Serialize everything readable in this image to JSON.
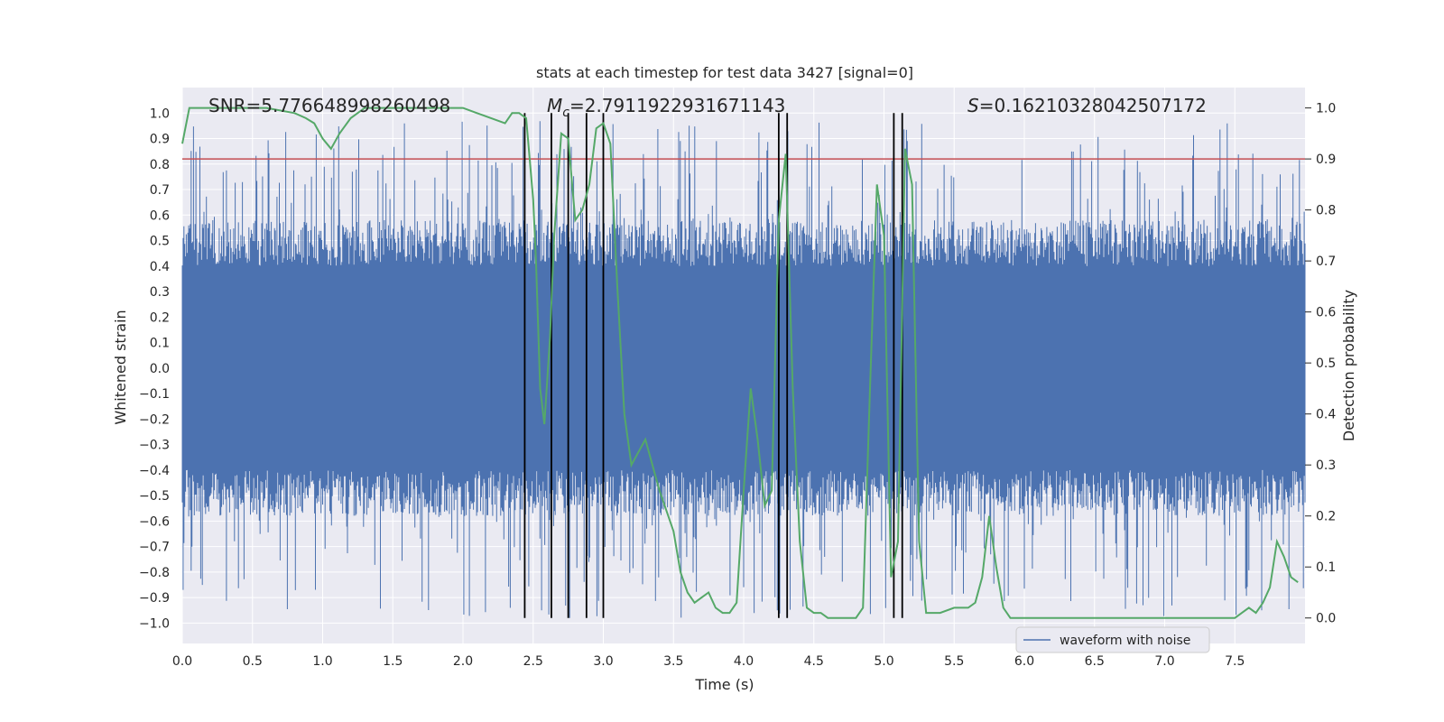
{
  "chart_data": {
    "type": "line",
    "title": "stats at each timestep for test data 3427 [signal=0]",
    "xlabel": "Time (s)",
    "ylabel": "Whitened strain",
    "y2label": "Detection probability",
    "xlim": [
      0,
      8
    ],
    "ylim": [
      -1.08,
      1.1
    ],
    "y2lim": [
      -0.05,
      1.04
    ],
    "x_ticks": [
      0.0,
      0.5,
      1.0,
      1.5,
      2.0,
      2.5,
      3.0,
      3.5,
      4.0,
      4.5,
      5.0,
      5.5,
      6.0,
      6.5,
      7.0,
      7.5
    ],
    "x_tick_labels": [
      "0.0",
      "0.5",
      "1.0",
      "1.5",
      "2.0",
      "2.5",
      "3.0",
      "3.5",
      "4.0",
      "4.5",
      "5.0",
      "5.5",
      "6.0",
      "6.5",
      "7.0",
      "7.5"
    ],
    "y_ticks": [
      -1.0,
      -0.9,
      -0.8,
      -0.7,
      -0.6,
      -0.5,
      -0.4,
      -0.3,
      -0.2,
      -0.1,
      0.0,
      0.1,
      0.2,
      0.3,
      0.4,
      0.5,
      0.6,
      0.7,
      0.8,
      0.9,
      1.0
    ],
    "y_tick_labels": [
      "−1.0",
      "−0.9",
      "−0.8",
      "−0.7",
      "−0.6",
      "−0.5",
      "−0.4",
      "−0.3",
      "−0.2",
      "−0.1",
      "0.0",
      "0.1",
      "0.2",
      "0.3",
      "0.4",
      "0.5",
      "0.6",
      "0.7",
      "0.8",
      "0.9",
      "1.0"
    ],
    "y2_ticks": [
      0.0,
      0.1,
      0.2,
      0.3,
      0.4,
      0.5,
      0.6,
      0.7,
      0.8,
      0.9,
      1.0
    ],
    "y2_tick_labels": [
      "0.0",
      "0.1",
      "0.2",
      "0.3",
      "0.4",
      "0.5",
      "0.6",
      "0.7",
      "0.8",
      "0.9",
      "1.0"
    ],
    "grid": true,
    "annotations": {
      "snr": "SNR=5.776648998260498",
      "mc_symbol": "M",
      "mc_sub": "c",
      "mc_value": "=2.7911922931671143",
      "s_symbol": "S",
      "s_value": "=0.16210328042507172"
    },
    "threshold": {
      "y2": 0.9,
      "color": "#c44e52"
    },
    "vertical_lines": [
      2.44,
      2.63,
      2.75,
      2.88,
      3.0,
      4.25,
      4.31,
      5.07,
      5.13
    ],
    "vertical_line_range": [
      0.0,
      1.0
    ],
    "series": [
      {
        "name": "waveform with noise",
        "color": "#4c72b0",
        "noise_profile": {
          "core_amplitude": 0.4,
          "max_spike": 0.97,
          "min_spike": -0.98
        }
      },
      {
        "color": "#55a868",
        "axis": "right",
        "x": [
          0.0,
          0.05,
          0.1,
          0.2,
          0.4,
          0.6,
          0.8,
          0.88,
          0.94,
          1.0,
          1.06,
          1.12,
          1.2,
          1.3,
          1.4,
          1.6,
          1.8,
          2.0,
          2.1,
          2.2,
          2.3,
          2.35,
          2.4,
          2.45,
          2.5,
          2.52,
          2.55,
          2.58,
          2.62,
          2.65,
          2.7,
          2.75,
          2.8,
          2.85,
          2.9,
          2.95,
          3.0,
          3.05,
          3.1,
          3.15,
          3.2,
          3.3,
          3.4,
          3.5,
          3.55,
          3.6,
          3.65,
          3.7,
          3.75,
          3.8,
          3.85,
          3.9,
          3.95,
          4.0,
          4.05,
          4.1,
          4.15,
          4.2,
          4.25,
          4.3,
          4.35,
          4.4,
          4.45,
          4.5,
          4.55,
          4.6,
          4.7,
          4.8,
          4.85,
          4.9,
          4.95,
          5.0,
          5.05,
          5.1,
          5.15,
          5.2,
          5.25,
          5.3,
          5.4,
          5.5,
          5.6,
          5.65,
          5.7,
          5.75,
          5.8,
          5.85,
          5.9,
          6.0,
          6.2,
          6.4,
          6.6,
          6.8,
          7.0,
          7.2,
          7.4,
          7.5,
          7.55,
          7.6,
          7.65,
          7.7,
          7.75,
          7.8,
          7.85,
          7.9,
          7.95
        ],
        "y": [
          0.93,
          1.0,
          1.0,
          1.0,
          1.0,
          1.0,
          0.99,
          0.98,
          0.97,
          0.94,
          0.92,
          0.95,
          0.98,
          1.0,
          1.0,
          1.0,
          1.0,
          1.0,
          0.99,
          0.98,
          0.97,
          0.99,
          0.99,
          0.98,
          0.82,
          0.7,
          0.45,
          0.38,
          0.55,
          0.75,
          0.95,
          0.94,
          0.78,
          0.8,
          0.85,
          0.96,
          0.97,
          0.93,
          0.65,
          0.4,
          0.3,
          0.35,
          0.25,
          0.17,
          0.09,
          0.05,
          0.03,
          0.04,
          0.05,
          0.02,
          0.01,
          0.01,
          0.03,
          0.25,
          0.45,
          0.35,
          0.22,
          0.25,
          0.78,
          0.91,
          0.45,
          0.15,
          0.02,
          0.01,
          0.01,
          0.0,
          0.0,
          0.0,
          0.02,
          0.45,
          0.85,
          0.75,
          0.08,
          0.15,
          0.92,
          0.85,
          0.15,
          0.01,
          0.01,
          0.02,
          0.02,
          0.03,
          0.08,
          0.2,
          0.1,
          0.02,
          0.0,
          0.0,
          0.0,
          0.0,
          0.0,
          0.0,
          0.0,
          0.0,
          0.0,
          0.0,
          0.01,
          0.02,
          0.01,
          0.03,
          0.06,
          0.15,
          0.12,
          0.08,
          0.07
        ]
      }
    ]
  }
}
